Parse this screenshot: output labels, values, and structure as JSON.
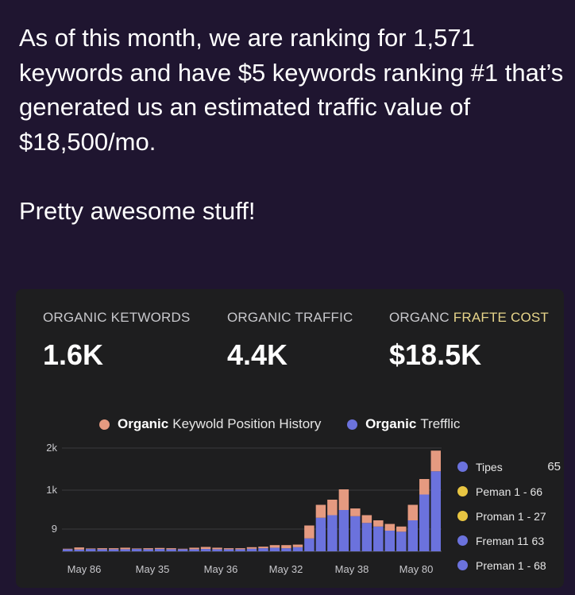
{
  "post": {
    "paragraph": "As of this month, we are ranking for 1,571 keywords and have $5 keywords ranking #1 that’s generated us an estimated traffic value of $18,500/mo.",
    "tagline": "Pretty awesome stuff!"
  },
  "metrics": [
    {
      "label": "ORGANIC KETWORDS",
      "value": "1.6K"
    },
    {
      "label": "ORGANIC TRAFFIC",
      "value": "4.4K"
    },
    {
      "label_prefix": "ORGANC",
      "label_accent": "FRAFTE COST",
      "value": "$18.5K"
    }
  ],
  "legend": {
    "keyword_bold": "Organic",
    "keyword_text": "Keywold Position History",
    "traffic_bold": "Organic",
    "traffic_text": "Trefflic"
  },
  "side_legend": [
    {
      "label": "Tipes",
      "value": "65",
      "color": "#6b72dd"
    },
    {
      "label": "Peman 1 - 66",
      "value": "",
      "color": "#e8c542"
    },
    {
      "label": "Proman 1 - 27",
      "value": "",
      "color": "#e8c542"
    },
    {
      "label": "Freman 11 63",
      "value": "",
      "color": "#6b72dd"
    },
    {
      "label": "Preman 1 - 68",
      "value": "",
      "color": "#6b72dd"
    }
  ],
  "colors": {
    "traffic": "#6b72dd",
    "keywords": "#e59a80",
    "grid": "#3a3a3c",
    "yellow": "#e8c542"
  },
  "chart_data": {
    "type": "bar",
    "stacked": true,
    "y_ticks": [
      "2k",
      "1k",
      "9"
    ],
    "x_ticks": [
      "May 86",
      "May 35",
      "May 36",
      "May 32",
      "May 38",
      "May 80"
    ],
    "ylim": [
      0,
      2000
    ],
    "series": [
      {
        "name": "Organic Trefflic",
        "values": [
          40,
          35,
          45,
          40,
          40,
          40,
          45,
          40,
          45,
          40,
          40,
          40,
          45,
          40,
          40,
          40,
          50,
          60,
          70,
          60,
          80,
          250,
          650,
          700,
          800,
          680,
          550,
          480,
          400,
          380,
          600,
          1100,
          1550
        ]
      },
      {
        "name": "Organic Keywold Position History",
        "values": [
          10,
          40,
          10,
          20,
          20,
          30,
          10,
          20,
          20,
          20,
          10,
          30,
          40,
          30,
          20,
          20,
          30,
          30,
          50,
          60,
          50,
          250,
          250,
          300,
          400,
          150,
          150,
          120,
          130,
          100,
          300,
          300,
          400
        ]
      }
    ]
  }
}
